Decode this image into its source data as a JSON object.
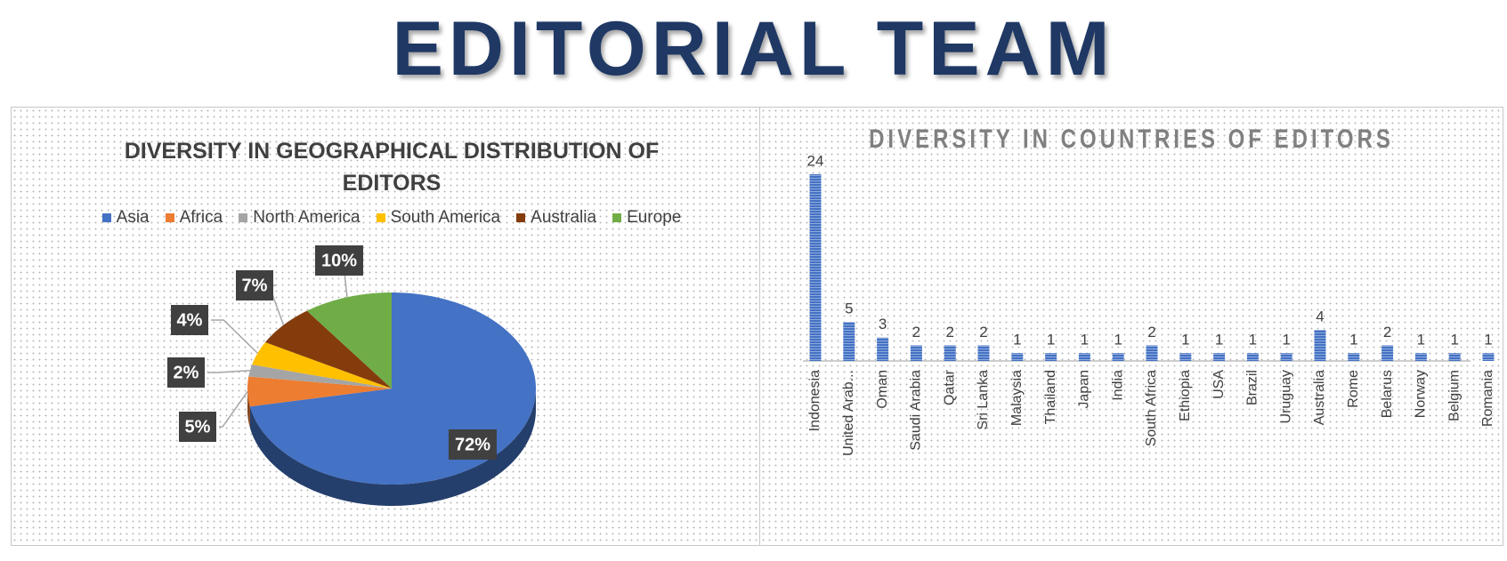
{
  "header": {
    "title": "EDITORIAL TEAM"
  },
  "chart_data": [
    {
      "type": "pie",
      "title": "DIVERSITY IN GEOGRAPHICAL DISTRIBUTION OF EDITORS",
      "categories": [
        "Asia",
        "Africa",
        "North America",
        "South America",
        "Australia",
        "Europe"
      ],
      "values": [
        72,
        5,
        2,
        4,
        7,
        10
      ],
      "value_labels": [
        "72%",
        "5%",
        "2%",
        "4%",
        "7%",
        "10%"
      ],
      "colors": [
        "#4472c4",
        "#ed7d31",
        "#a5a5a5",
        "#ffc000",
        "#843c0c",
        "#70ad47"
      ],
      "legend": "top"
    },
    {
      "type": "bar",
      "title": "DIVERSITY IN COUNTRIES OF EDITORS",
      "categories": [
        "Indonesia",
        "United Arab...",
        "Oman",
        "Saudi Arabia",
        "Qatar",
        "Sri Lanka",
        "Malaysia",
        "Thailand",
        "Japan",
        "India",
        "South Africa",
        "Ethiopia",
        "USA",
        "Brazil",
        "Uruguay",
        "Australia",
        "Rome",
        "Belarus",
        "Norway",
        "Belgium",
        "Romania"
      ],
      "values": [
        24,
        5,
        3,
        2,
        2,
        2,
        1,
        1,
        1,
        1,
        2,
        1,
        1,
        1,
        1,
        4,
        1,
        2,
        1,
        1,
        1
      ],
      "color": "#4472c4"
    }
  ]
}
